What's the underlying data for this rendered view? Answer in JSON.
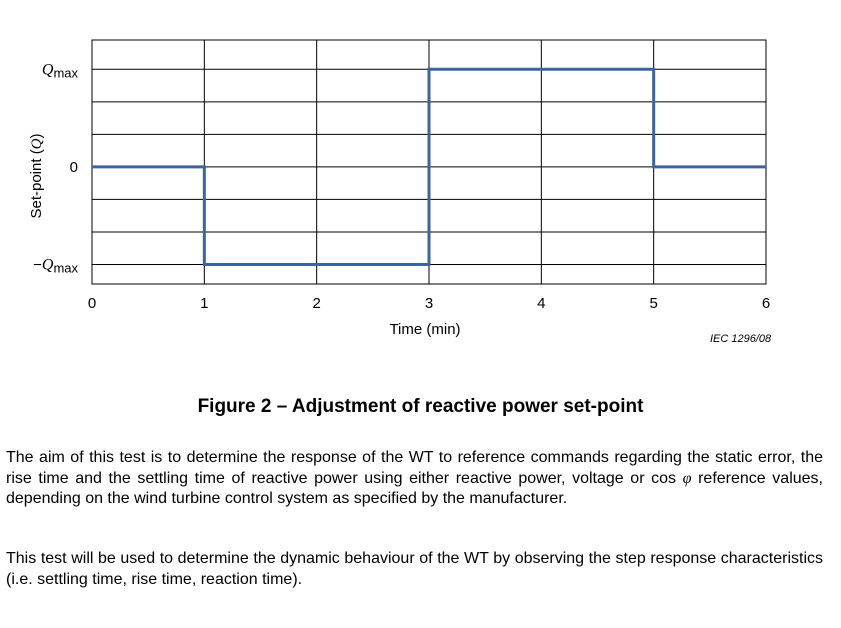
{
  "chart_data": {
    "type": "line",
    "xlabel": "Time   (min)",
    "ylabel": "Set-point  (Q)",
    "xlim": [
      0,
      6
    ],
    "ylim": [
      -1.2,
      1.3
    ],
    "x_ticks": [
      "0",
      "1",
      "2",
      "3",
      "4",
      "5",
      "6"
    ],
    "y_ticks": [
      {
        "value": 1,
        "label_var": "Q",
        "label_sub": "max",
        "prefix": ""
      },
      {
        "value": 0,
        "label_var": "",
        "label_sub": "",
        "prefix": "0"
      },
      {
        "value": -1,
        "label_var": "Q",
        "label_sub": "max",
        "prefix": "−"
      }
    ],
    "grid": true,
    "step_series": {
      "color": "#3a65a0",
      "points": [
        [
          0,
          0
        ],
        [
          1,
          0
        ],
        [
          1,
          -1
        ],
        [
          3,
          -1
        ],
        [
          3,
          1
        ],
        [
          5,
          1
        ],
        [
          5,
          0
        ],
        [
          6,
          0
        ]
      ]
    }
  },
  "figure": {
    "source_note": "IEC   1296/08",
    "caption": "Figure 2 – Adjustment of reactive power set-point"
  },
  "paragraphs": {
    "p1_before": "The aim of this test is to determine the response of the WT to reference commands regarding the static error, the rise time and the settling time of reactive power using either reactive power, voltage or cos ",
    "p1_symbol": "φ",
    "p1_after": " reference values, depending on the wind turbine control system as specified by the manufacturer.",
    "p2": "This test will be used to determine the dynamic behaviour of the WT by observing the step response characteristics (i.e. settling time, rise time, reaction time)."
  }
}
